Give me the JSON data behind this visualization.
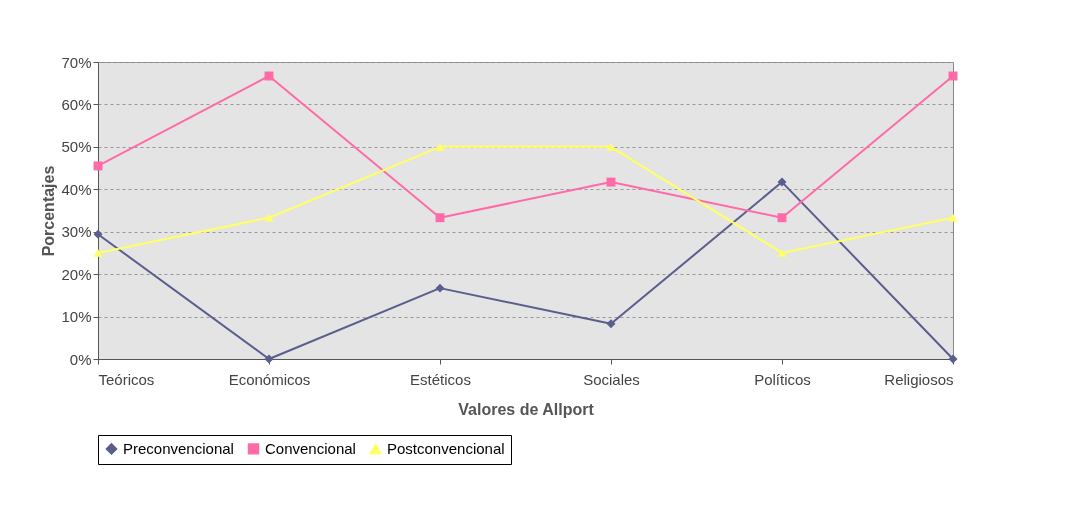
{
  "chart_data": {
    "type": "line",
    "xlabel": "Valores de Allport",
    "ylabel": "Porcentajes",
    "categories": [
      "Teóricos",
      "Económicos",
      "Estéticos",
      "Sociales",
      "Políticos",
      "Religiosos"
    ],
    "series": [
      {
        "name": "Preconvencional",
        "color": "#5a5e8c",
        "marker": "diamond",
        "values": [
          29.4,
          0,
          16.7,
          8.3,
          41.7,
          0
        ]
      },
      {
        "name": "Convencional",
        "color": "#ff6aa8",
        "marker": "square",
        "values": [
          45.5,
          66.7,
          33.3,
          41.7,
          33.3,
          66.7
        ]
      },
      {
        "name": "Postconvencional",
        "color": "#ffff66",
        "marker": "triangle",
        "values": [
          25,
          33.3,
          50,
          50,
          25,
          33.3
        ]
      }
    ],
    "ylim": [
      0,
      70
    ],
    "yticks": [
      {
        "value": 0,
        "label": "0%"
      },
      {
        "value": 10,
        "label": "10%"
      },
      {
        "value": 20,
        "label": "20%"
      },
      {
        "value": 30,
        "label": "30%"
      },
      {
        "value": 40,
        "label": "40%"
      },
      {
        "value": 50,
        "label": "50%"
      },
      {
        "value": 60,
        "label": "60%"
      },
      {
        "value": 70,
        "label": "70%"
      }
    ],
    "grid": "y",
    "legend": "bottom",
    "line_style": "solid"
  }
}
